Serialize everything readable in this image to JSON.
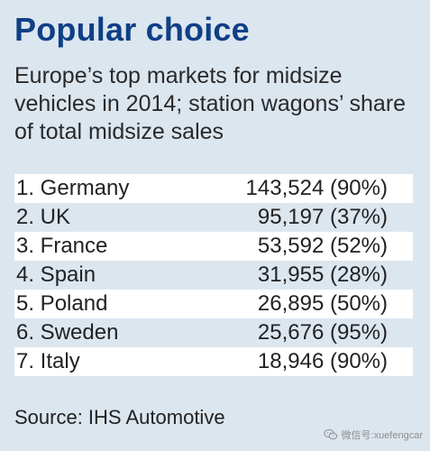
{
  "chart_data": {
    "type": "table",
    "title": "Popular choice",
    "subtitle": "Europe’s top markets for midsize vehicles in 2014; station wagons’ share of total midsize sales",
    "rows": [
      {
        "market": "1. Germany",
        "value": "143,524 (90%)"
      },
      {
        "market": "2. UK",
        "value": "95,197 (37%)"
      },
      {
        "market": "3. France",
        "value": "53,592 (52%)"
      },
      {
        "market": "4. Spain",
        "value": "31,955 (28%)"
      },
      {
        "market": "5. Poland",
        "value": "26,895 (50%)"
      },
      {
        "market": "6. Sweden",
        "value": "25,676 (95%)"
      },
      {
        "market": "7. Italy",
        "value": "18,946 (90%)"
      }
    ],
    "source": "Source: IHS Automotive"
  },
  "watermark": {
    "icon": "wechat-icon",
    "text": "微信号:xuefengcar"
  },
  "colors": {
    "background": "#dce6ef",
    "title": "#0f3f85",
    "row_highlight": "#ffffff"
  }
}
